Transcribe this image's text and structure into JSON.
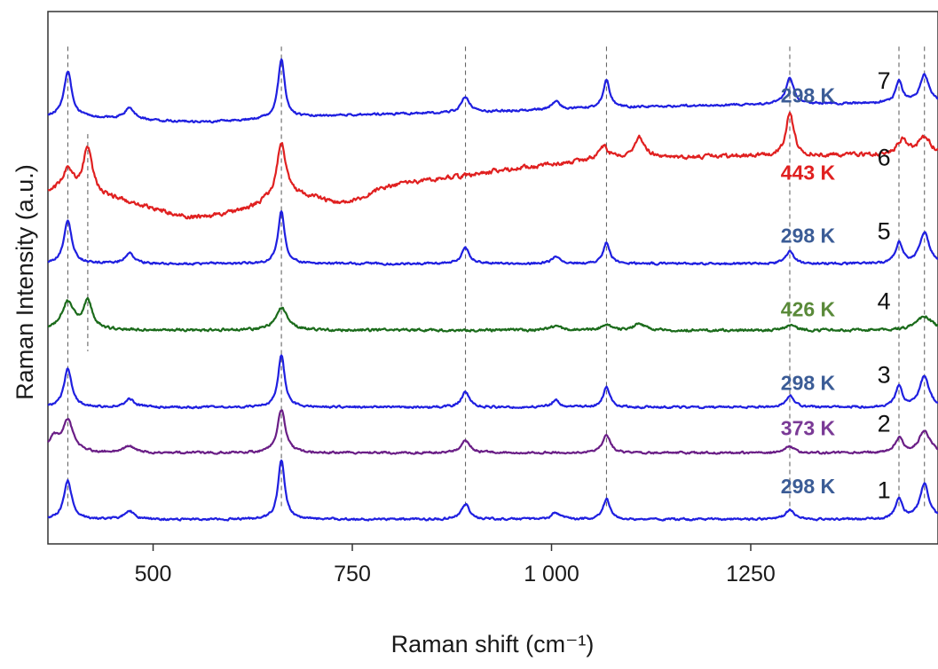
{
  "chart_data": {
    "type": "line",
    "xlabel": "Raman shift (cm⁻¹)",
    "ylabel": "Raman Intensity (a.u.)",
    "xlim": [
      368,
      1485
    ],
    "ylim": [
      0,
      7.6
    ],
    "x_ticks": [
      {
        "value": 500,
        "label": "500"
      },
      {
        "value": 750,
        "label": "750"
      },
      {
        "value": 1000,
        "label": "1 000"
      },
      {
        "value": 1250,
        "label": "1250"
      }
    ],
    "reference_lines": [
      393,
      418,
      661,
      892,
      1069,
      1299,
      1436,
      1468
    ],
    "series": [
      {
        "id": 1,
        "index_label": "1",
        "temp_label": "298 K",
        "color": "#1f1fe0",
        "temp_color": "#3b5c96",
        "baseline": 0.35,
        "slope": 0.0,
        "noise": 0.012,
        "peaks": [
          [
            393,
            0.55,
            6
          ],
          [
            470,
            0.12,
            7
          ],
          [
            661,
            0.85,
            5
          ],
          [
            892,
            0.22,
            6
          ],
          [
            1005,
            0.1,
            6
          ],
          [
            1069,
            0.3,
            5
          ],
          [
            1299,
            0.14,
            6
          ],
          [
            1436,
            0.3,
            5
          ],
          [
            1468,
            0.5,
            7
          ]
        ]
      },
      {
        "id": 2,
        "index_label": "2",
        "temp_label": "373 K",
        "color": "#6a1e86",
        "temp_color": "#7a3a96",
        "baseline": 1.3,
        "slope": 0.0,
        "noise": 0.012,
        "peaks": [
          [
            375,
            0.2,
            8
          ],
          [
            393,
            0.45,
            8
          ],
          [
            470,
            0.1,
            7
          ],
          [
            661,
            0.62,
            6
          ],
          [
            892,
            0.17,
            7
          ],
          [
            1069,
            0.25,
            6
          ],
          [
            1299,
            0.09,
            6
          ],
          [
            1436,
            0.2,
            6
          ],
          [
            1468,
            0.32,
            8
          ]
        ]
      },
      {
        "id": 3,
        "index_label": "3",
        "temp_label": "298 K",
        "color": "#1f1fe0",
        "temp_color": "#3b5c96",
        "baseline": 1.95,
        "slope": 0.0,
        "noise": 0.012,
        "peaks": [
          [
            393,
            0.55,
            6
          ],
          [
            470,
            0.12,
            7
          ],
          [
            661,
            0.75,
            5
          ],
          [
            892,
            0.22,
            6
          ],
          [
            1005,
            0.1,
            6
          ],
          [
            1069,
            0.3,
            5
          ],
          [
            1299,
            0.17,
            6
          ],
          [
            1436,
            0.3,
            5
          ],
          [
            1468,
            0.45,
            7
          ]
        ]
      },
      {
        "id": 4,
        "index_label": "4",
        "temp_label": "426 K",
        "color": "#1b6b1b",
        "temp_color": "#5a8a3a",
        "baseline": 3.05,
        "slope": 0.0,
        "noise": 0.015,
        "peaks": [
          [
            393,
            0.4,
            9
          ],
          [
            418,
            0.4,
            7
          ],
          [
            661,
            0.32,
            9
          ],
          [
            1005,
            0.06,
            8
          ],
          [
            1069,
            0.08,
            7
          ],
          [
            1110,
            0.1,
            7
          ],
          [
            1299,
            0.07,
            7
          ],
          [
            1468,
            0.2,
            12
          ]
        ]
      },
      {
        "id": 5,
        "index_label": "5",
        "temp_label": "298 K",
        "color": "#1f1fe0",
        "temp_color": "#3b5c96",
        "baseline": 4.0,
        "slope": 0.0,
        "noise": 0.012,
        "peaks": [
          [
            393,
            0.6,
            6
          ],
          [
            470,
            0.15,
            7
          ],
          [
            661,
            0.75,
            5
          ],
          [
            892,
            0.22,
            6
          ],
          [
            1005,
            0.1,
            6
          ],
          [
            1069,
            0.3,
            5
          ],
          [
            1299,
            0.17,
            6
          ],
          [
            1436,
            0.3,
            5
          ],
          [
            1468,
            0.45,
            7
          ]
        ]
      },
      {
        "id": 6,
        "index_label": "6",
        "temp_label": "443 K",
        "color": "#e02020",
        "temp_color": "#e02020",
        "baseline": 5.0,
        "slope": 0.0,
        "noise": 0.025,
        "peaks": [
          [
            393,
            0.35,
            9
          ],
          [
            418,
            0.65,
            7
          ],
          [
            661,
            0.8,
            7
          ],
          [
            1065,
            0.2,
            8
          ],
          [
            1110,
            0.3,
            8
          ],
          [
            1299,
            0.6,
            6
          ],
          [
            1440,
            0.2,
            8
          ],
          [
            1468,
            0.25,
            10
          ]
        ]
      },
      {
        "id": 7,
        "index_label": "7",
        "temp_label": "298 K",
        "color": "#1f1fe0",
        "temp_color": "#3b5c96",
        "baseline": 6.1,
        "slope": 0.0,
        "noise": 0.012,
        "peaks": [
          [
            393,
            0.65,
            6
          ],
          [
            470,
            0.15,
            7
          ],
          [
            661,
            0.85,
            5
          ],
          [
            892,
            0.22,
            6
          ],
          [
            1005,
            0.12,
            6
          ],
          [
            1069,
            0.4,
            5
          ],
          [
            1299,
            0.37,
            6
          ],
          [
            1436,
            0.3,
            5
          ],
          [
            1468,
            0.4,
            7
          ]
        ]
      }
    ]
  }
}
